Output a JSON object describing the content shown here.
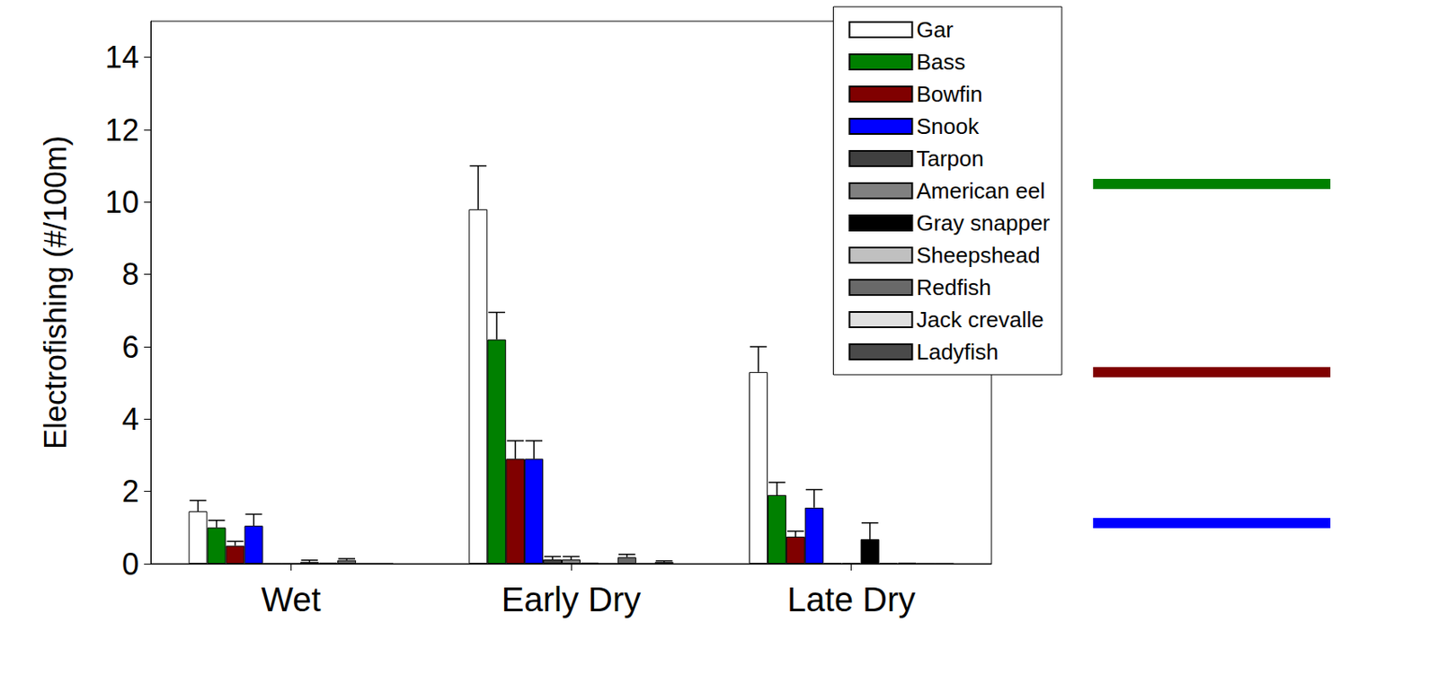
{
  "chart_data": {
    "type": "bar",
    "y_label": "Electrofishing (#/100m)",
    "categories": [
      "Wet",
      "Early Dry",
      "Late Dry"
    ],
    "ylim": [
      0,
      15
    ],
    "yticks": [
      0,
      2,
      4,
      6,
      8,
      10,
      12,
      14
    ],
    "grid": false,
    "legend": "upper right",
    "series": [
      {
        "name": "Gar",
        "color": "#ffffff",
        "values": [
          1.45,
          9.8,
          5.3
        ],
        "errors": [
          0.3,
          1.2,
          0.7
        ]
      },
      {
        "name": "Bass",
        "color": "#008000",
        "values": [
          1.0,
          6.2,
          1.9
        ],
        "errors": [
          0.2,
          0.75,
          0.35
        ]
      },
      {
        "name": "Bowfin",
        "color": "#800000",
        "values": [
          0.5,
          2.9,
          0.75
        ],
        "errors": [
          0.12,
          0.5,
          0.15
        ]
      },
      {
        "name": "Snook",
        "color": "#0000ff",
        "values": [
          1.05,
          2.9,
          1.55
        ],
        "errors": [
          0.32,
          0.5,
          0.5
        ]
      },
      {
        "name": "Tarpon",
        "color": "#404040",
        "values": [
          0,
          0.12,
          0.02
        ],
        "errors": [
          0,
          0.08,
          0
        ]
      },
      {
        "name": "American eel",
        "color": "#808080",
        "values": [
          0,
          0.12,
          0.02
        ],
        "errors": [
          0,
          0.08,
          0
        ]
      },
      {
        "name": "Gray snapper",
        "color": "#000000",
        "values": [
          0.05,
          0.03,
          0.68
        ],
        "errors": [
          0.05,
          0,
          0.45
        ]
      },
      {
        "name": "Sheepshead",
        "color": "#c0c0c0",
        "values": [
          0.03,
          0,
          0.02
        ],
        "errors": [
          0,
          0,
          0
        ]
      },
      {
        "name": "Redfish",
        "color": "#696969",
        "values": [
          0.1,
          0.18,
          0.03
        ],
        "errors": [
          0.04,
          0.08,
          0
        ]
      },
      {
        "name": "Jack crevalle",
        "color": "#e0e0e0",
        "values": [
          0,
          0,
          0
        ],
        "errors": [
          0,
          0,
          0
        ]
      },
      {
        "name": "Ladyfish",
        "color": "#4a4a4a",
        "values": [
          0,
          0.05,
          0
        ],
        "errors": [
          0,
          0.03,
          0
        ]
      }
    ]
  }
}
